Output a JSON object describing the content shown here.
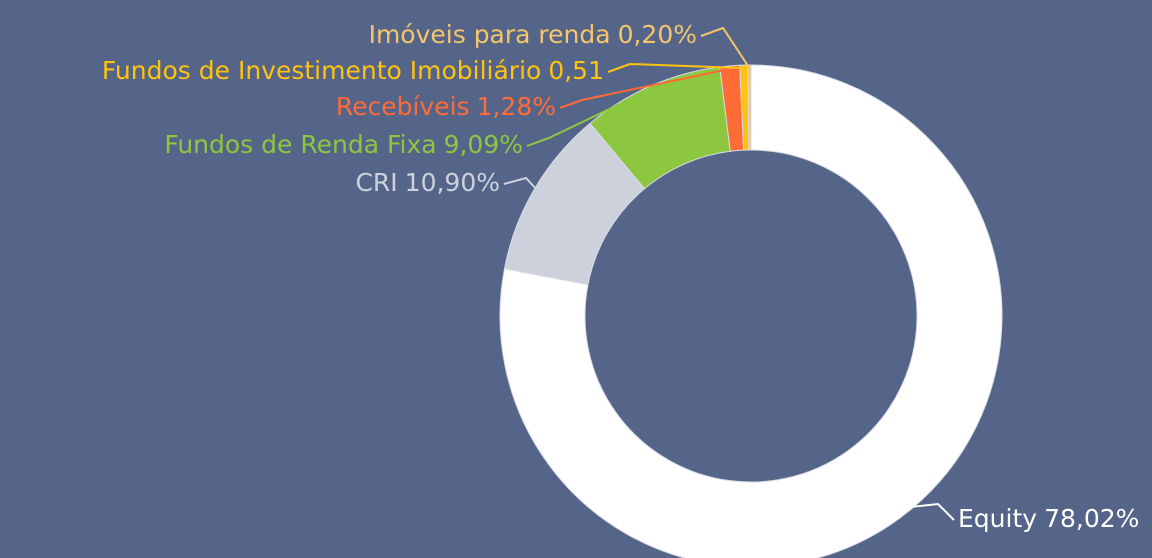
{
  "chart_data": {
    "type": "donut",
    "categories": [
      "Equity",
      "CRI",
      "Fundos de Renda Fixa",
      "Recebíveis",
      "Fundos de Investimento Imobiliário",
      "Imóveis para renda"
    ],
    "values": [
      78.02,
      10.9,
      9.09,
      1.28,
      0.51,
      0.2
    ],
    "value_labels": [
      "78,02%",
      "10,90%",
      "9,09%",
      "1,28%",
      "0,51",
      "0,20%"
    ],
    "colors": [
      "#ffffff",
      "#cdd1dc",
      "#8dc63f",
      "#ff6b35",
      "#ffc20e",
      "#f5c56a"
    ]
  }
}
